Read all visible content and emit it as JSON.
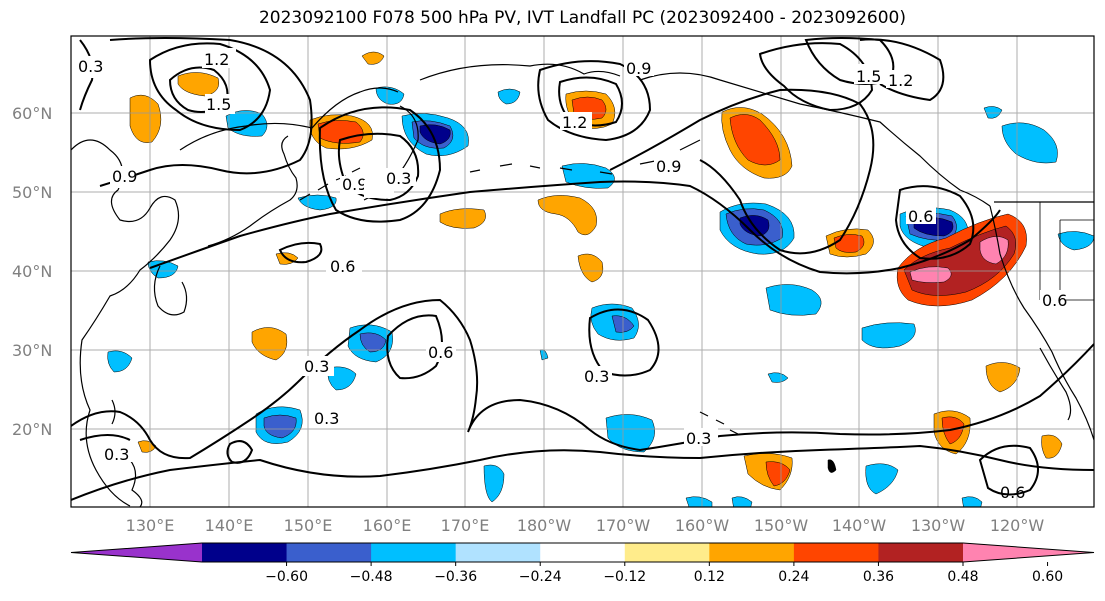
{
  "title": "2023092100 F078 500 hPa PV, IVT Landfall PC (2023092400 - 2023092600)",
  "lat_labels": [
    "60°N",
    "50°N",
    "40°N",
    "30°N",
    "20°N"
  ],
  "lon_labels": [
    "130°E",
    "140°E",
    "150°E",
    "160°E",
    "170°E",
    "180°W",
    "170°W",
    "160°W",
    "150°W",
    "140°W",
    "130°W",
    "120°W"
  ],
  "colorbar": {
    "ticks": [
      "−0.60",
      "−0.48",
      "−0.36",
      "−0.24",
      "−0.12",
      "0.12",
      "0.24",
      "0.36",
      "0.48",
      "0.60"
    ],
    "colors": [
      "#9932CC",
      "#00008B",
      "#3A5FCD",
      "#00BFFF",
      "#B0E2FF",
      "#FFFFFF",
      "#FFEC8B",
      "#FFA500",
      "#FF4500",
      "#B22222",
      "#FF83B0"
    ]
  },
  "contour_labels": [
    "1.2",
    "1.5",
    "0.9",
    "1.2",
    "0.9",
    "0.9",
    "0.6",
    "0.3",
    "0.3",
    "0.6",
    "0.3",
    "0.3",
    "0.3",
    "0.6",
    "0.6",
    "1.2",
    "1.5",
    "0.9",
    "0.6",
    "0.3",
    "0.3"
  ]
}
